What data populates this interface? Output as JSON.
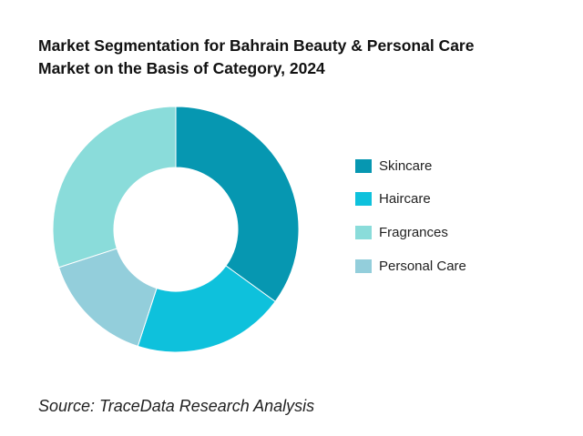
{
  "chart_data": {
    "type": "pie",
    "variant": "donut",
    "title_lines": [
      "Market Segmentation for Bahrain Beauty & Personal Care",
      "Market on the Basis of Category, 2024"
    ],
    "categories": [
      "Skincare",
      "Haircare",
      "Fragrances",
      "Personal Care"
    ],
    "values": [
      35,
      20,
      30,
      15
    ],
    "slice_order": [
      "Skincare",
      "Haircare",
      "Personal Care",
      "Fragrances"
    ],
    "colors": {
      "Skincare": "#0697B1",
      "Haircare": "#0EC1DC",
      "Fragrances": "#8ADCDA",
      "Personal Care": "#93CEDB"
    },
    "legend_position": "right",
    "data_labels": false
  },
  "source": "Source: TraceData Research Analysis"
}
